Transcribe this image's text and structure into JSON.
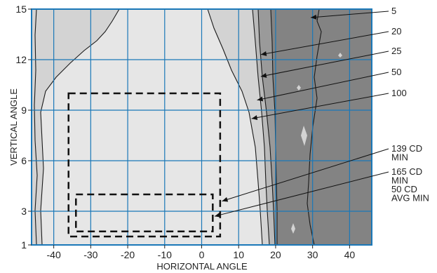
{
  "chart_data": {
    "type": "contour",
    "xlabel": "HORIZONTAL ANGLE",
    "ylabel": "VERTICAL ANGLE",
    "xlim": [
      -46,
      46
    ],
    "ylim": [
      1,
      15
    ],
    "x_ticks": [
      -40,
      -30,
      -20,
      -10,
      0,
      10,
      20,
      30,
      40
    ],
    "y_ticks": [
      1,
      3,
      6,
      9,
      12,
      15
    ],
    "grid": true,
    "colors": {
      "grid": "#1a78b8",
      "zone_lightest": "#e6e6e6",
      "zone_light": "#d3d3d3",
      "zone_mid": "#b9b9b9",
      "zone_dark": "#9a9a9a",
      "zone_darkest": "#838383",
      "contour_line": "#1a1a1a"
    },
    "contours": [
      {
        "label": "5",
        "annotation_point": [
          29.5,
          14.5
        ]
      },
      {
        "label": "20",
        "annotation_point": [
          16,
          12.3
        ]
      },
      {
        "label": "25",
        "annotation_point": [
          16,
          11
        ]
      },
      {
        "label": "50",
        "annotation_point": [
          15,
          9.6
        ]
      },
      {
        "label": "100",
        "annotation_point": [
          13.5,
          8.5
        ]
      }
    ],
    "regions": [
      {
        "label": "139 CD\nMIN",
        "x_range": [
          -36,
          5
        ],
        "y_range": [
          1.5,
          10
        ],
        "annotation_point": [
          5.5,
          3.6
        ]
      },
      {
        "label": "165 CD\nMIN\n50 CD\nAVG MIN",
        "x_range": [
          -34,
          3
        ],
        "y_range": [
          1.8,
          4
        ],
        "annotation_point": [
          3.5,
          2.7
        ]
      }
    ]
  }
}
